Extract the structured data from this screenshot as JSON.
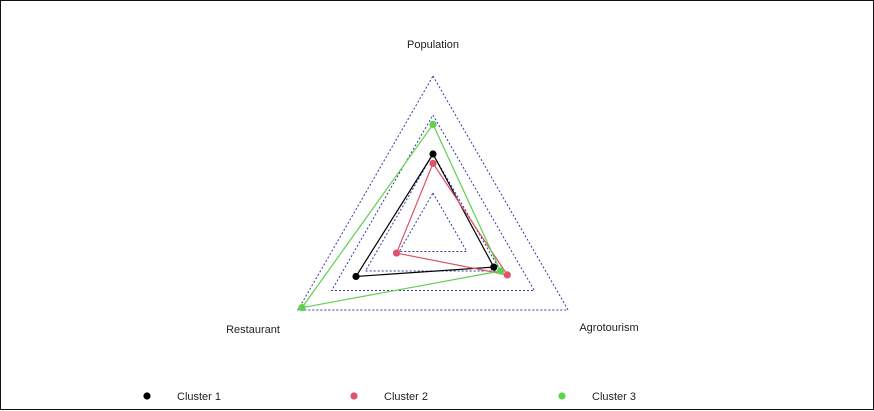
{
  "chart_data": {
    "type": "radar",
    "axes": [
      "Population",
      "Agrotourism",
      "Restaurant"
    ],
    "rlim": [
      0,
      1
    ],
    "grid": true,
    "grid_levels": [
      0.25,
      0.5,
      0.75,
      1.0
    ],
    "grid_color": "#3a3a9a",
    "legend_position": "bottom",
    "series": [
      {
        "name": "Cluster 1",
        "color": "#000000",
        "values": [
          0.5,
          0.45,
          0.57
        ]
      },
      {
        "name": "Cluster 2",
        "color": "#df536b",
        "values": [
          0.44,
          0.55,
          0.27
        ]
      },
      {
        "name": "Cluster 3",
        "color": "#61d04f",
        "values": [
          0.69,
          0.5,
          0.97
        ]
      }
    ]
  }
}
